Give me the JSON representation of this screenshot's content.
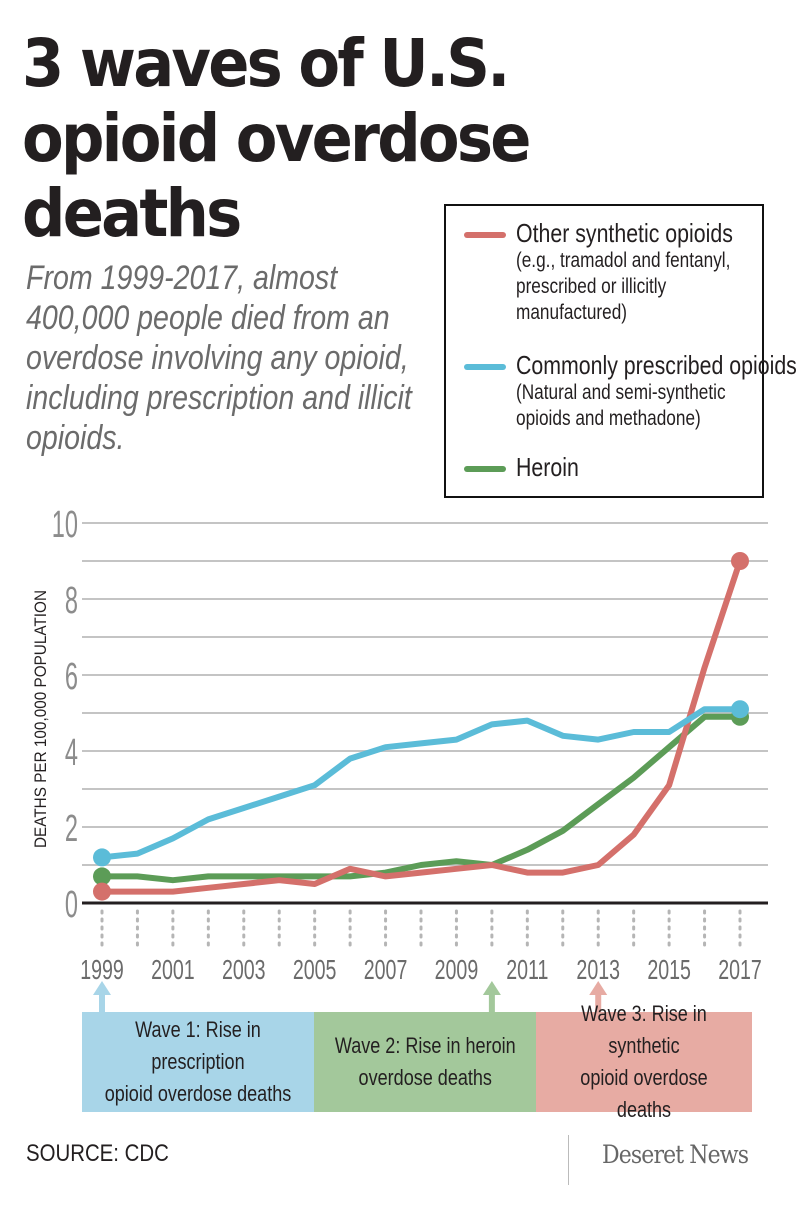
{
  "header": {
    "title": "3 waves of U.S. opioid overdose deaths",
    "subtitle": "From 1999-2017, almost 400,000 people died from an overdose involving any opioid, including prescription and illicit opioids."
  },
  "legend": {
    "items": [
      {
        "label": "Other synthetic opioids",
        "sublabel": "(e.g., tramadol and fentanyl,\nprescribed or illicitly\nmanufactured)",
        "color": "#d4706b"
      },
      {
        "label": "Commonly prescribed opioids",
        "sublabel": "(Natural and semi-synthetic\nopioids and methadone)",
        "color": "#5bbcd8"
      },
      {
        "label": "Heroin",
        "sublabel": "",
        "color": "#5c9c57"
      }
    ]
  },
  "chart_data": {
    "type": "line",
    "title": "3 waves of U.S. opioid overdose deaths",
    "xlabel": "",
    "ylabel": "DEATHS PER 100,000 POPULATION",
    "ylim": [
      0,
      10
    ],
    "y_ticks": [
      0,
      2,
      4,
      6,
      8,
      10
    ],
    "y_gridlines": [
      1,
      2,
      3,
      4,
      5,
      6,
      7,
      8,
      9,
      10
    ],
    "x": [
      1999,
      2000,
      2001,
      2002,
      2003,
      2004,
      2005,
      2006,
      2007,
      2008,
      2009,
      2010,
      2011,
      2012,
      2013,
      2014,
      2015,
      2016,
      2017
    ],
    "x_tick_labels": [
      "1999",
      "2001",
      "2003",
      "2005",
      "2007",
      "2009",
      "2011",
      "2013",
      "2015",
      "2017"
    ],
    "grid": true,
    "legend_position": "top-right",
    "series": [
      {
        "name": "Other synthetic opioids",
        "color": "#d4706b",
        "values": [
          0.3,
          0.3,
          0.3,
          0.4,
          0.5,
          0.6,
          0.5,
          0.9,
          0.7,
          0.8,
          0.9,
          1.0,
          0.8,
          0.8,
          1.0,
          1.8,
          3.1,
          6.2,
          9.0
        ]
      },
      {
        "name": "Commonly prescribed opioids",
        "color": "#5bbcd8",
        "values": [
          1.2,
          1.3,
          1.7,
          2.2,
          2.5,
          2.8,
          3.1,
          3.8,
          4.1,
          4.2,
          4.3,
          4.7,
          4.8,
          4.4,
          4.3,
          4.5,
          4.5,
          5.1,
          5.1
        ]
      },
      {
        "name": "Heroin",
        "color": "#5c9c57",
        "values": [
          0.7,
          0.7,
          0.6,
          0.7,
          0.7,
          0.7,
          0.7,
          0.7,
          0.8,
          1.0,
          1.1,
          1.0,
          1.4,
          1.9,
          2.6,
          3.3,
          4.1,
          4.9,
          4.9
        ]
      }
    ],
    "annotations": [
      {
        "year": 1999,
        "label": "Wave 1: Rise in prescription opioid overdose deaths",
        "color": "#a8d5e8"
      },
      {
        "year": 2010,
        "label": "Wave 2: Rise in heroin overdose deaths",
        "color": "#a3c89b"
      },
      {
        "year": 2013,
        "label": "Wave 3: Rise in synthetic opioid overdose deaths",
        "color": "#e7aba3"
      }
    ]
  },
  "waves": [
    {
      "text": "Wave 1: Rise in prescription\nopioid overdose deaths",
      "color": "#a8d5e8"
    },
    {
      "text": "Wave 2: Rise in heroin\noverdose deaths",
      "color": "#a3c89b"
    },
    {
      "text": "Wave 3: Rise in synthetic\nopioid overdose deaths",
      "color": "#e7aba3"
    }
  ],
  "footer": {
    "source": "SOURCE: CDC",
    "brand": "Deseret News"
  }
}
